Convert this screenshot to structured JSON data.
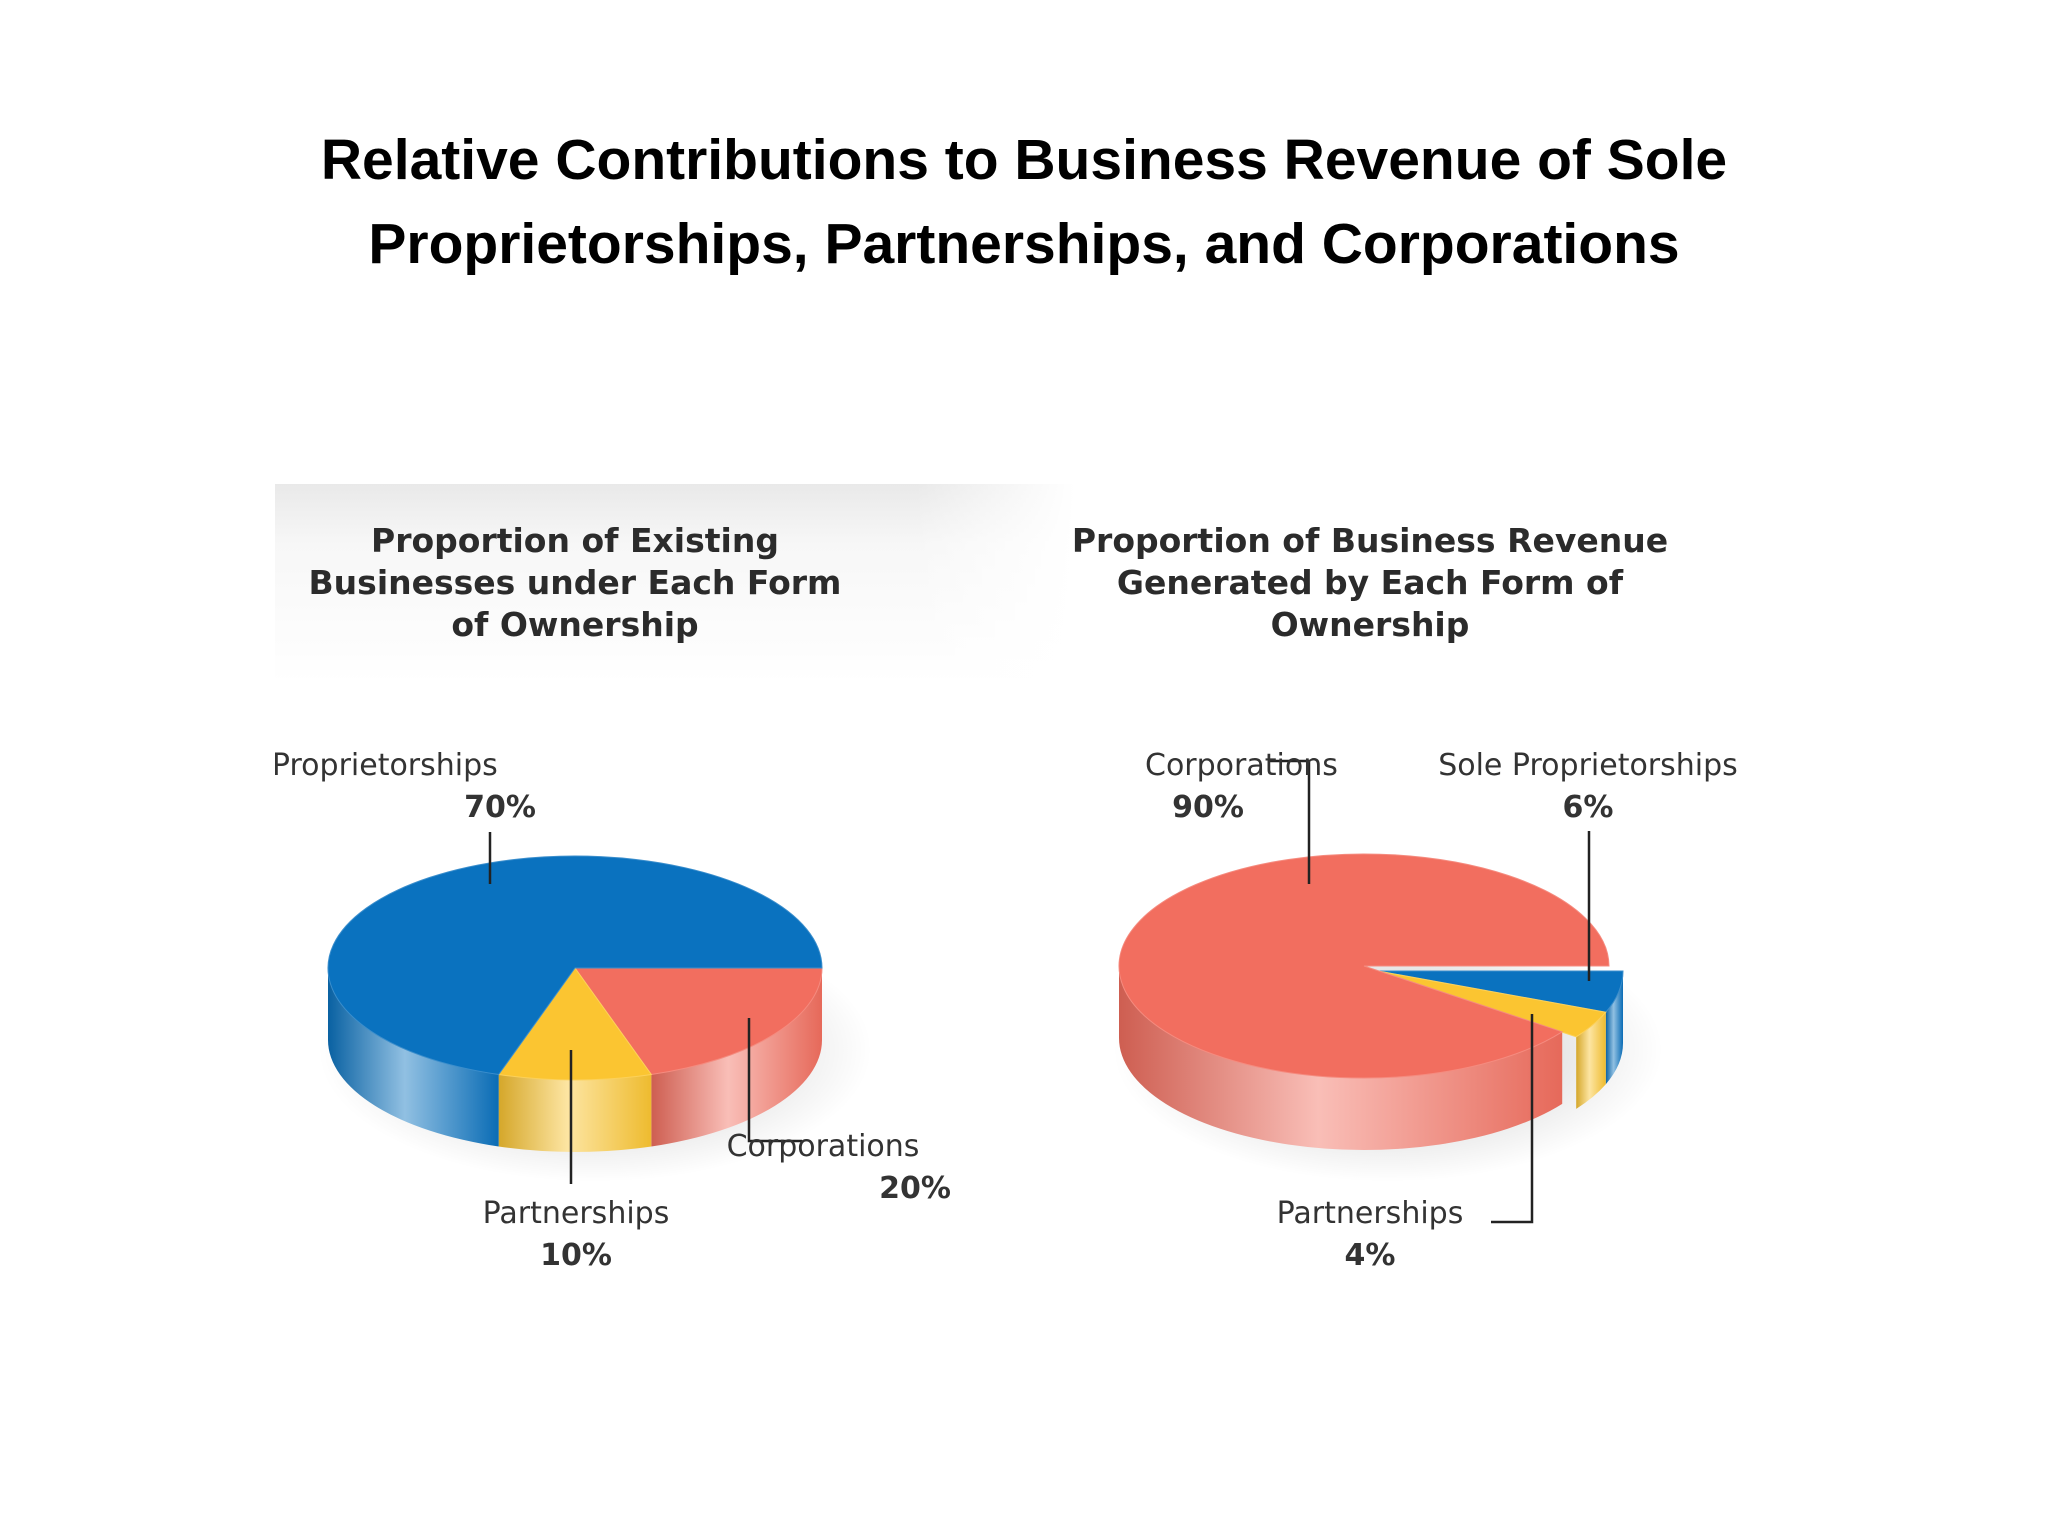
{
  "slide": {
    "title_lines": [
      "Relative Contributions to Business Revenue of Sole",
      "Proprietorships, Partnerships, and Corporations"
    ]
  },
  "colors": {
    "sole_proprietorships": "#0a72bf",
    "partnerships": "#fbc531",
    "corporations": "#f26e5f"
  },
  "chart_data": [
    {
      "type": "pie",
      "title_lines": [
        "Proportion of Existing",
        "Businesses under Each Form",
        "of Ownership"
      ],
      "labels": [
        "Sole Proprietorships",
        "Partnerships",
        "Corporations"
      ],
      "values": [
        70,
        10,
        20
      ],
      "value_labels": [
        "70%",
        "10%",
        "20%"
      ],
      "colors": [
        "#0a72bf",
        "#fbc531",
        "#f26e5f"
      ]
    },
    {
      "type": "pie",
      "title_lines": [
        "Proportion of Business Revenue",
        "Generated by Each Form of",
        "Ownership"
      ],
      "labels": [
        "Corporations",
        "Sole Proprietorships",
        "Partnerships"
      ],
      "values": [
        90,
        6,
        4
      ],
      "value_labels": [
        "90%",
        "6%",
        "4%"
      ],
      "colors": [
        "#f26e5f",
        "#0a72bf",
        "#fbc531"
      ]
    }
  ]
}
